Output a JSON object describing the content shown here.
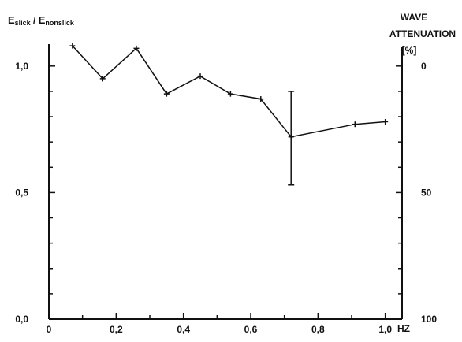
{
  "chart_data": {
    "type": "line",
    "ylabel_left": {
      "main_a": "E",
      "sub_a": "slick",
      "sep": " / ",
      "main_b": "E",
      "sub_b": "nonslick"
    },
    "ylabel_right": {
      "line1": "WAVE",
      "line2": "ATTENUATION",
      "line3": "[%]"
    },
    "xunit": "HZ",
    "xlim": [
      0,
      1.05
    ],
    "ylim_left": [
      0,
      1.18
    ],
    "ylim_right": [
      100,
      -18
    ],
    "x_ticks": [
      {
        "v": 0,
        "label": "0"
      },
      {
        "v": 0.2,
        "label": "0,2"
      },
      {
        "v": 0.4,
        "label": "0,4"
      },
      {
        "v": 0.6,
        "label": "0,6"
      },
      {
        "v": 0.8,
        "label": "0,8"
      },
      {
        "v": 1.0,
        "label": "1,0"
      }
    ],
    "x_minor_ticks": [
      0.1,
      0.3,
      0.5,
      0.7,
      0.9
    ],
    "y_left_ticks": [
      {
        "v": 0.0,
        "label": "0,0"
      },
      {
        "v": 0.5,
        "label": "0,5"
      },
      {
        "v": 1.0,
        "label": "1,0"
      }
    ],
    "y_left_minor_ticks": [
      0.1,
      0.2,
      0.3,
      0.4,
      0.6,
      0.7,
      0.8,
      0.9
    ],
    "y_right_ticks": [
      {
        "v": 0,
        "label": "0"
      },
      {
        "v": 50,
        "label": "50"
      },
      {
        "v": 100,
        "label": "100"
      }
    ],
    "y_right_minor_ticks": [
      10,
      20,
      30,
      40,
      60,
      70,
      80,
      90
    ],
    "series": [
      {
        "x": [
          0.07,
          0.16,
          0.26,
          0.35,
          0.45,
          0.54,
          0.63,
          0.72,
          0.91,
          1.0
        ],
        "y": [
          1.08,
          0.95,
          1.07,
          0.89,
          0.96,
          0.89,
          0.87,
          0.72,
          0.77,
          0.78
        ]
      }
    ],
    "error_bars": [
      {
        "x": 0.72,
        "low": 0.53,
        "high": 0.9
      }
    ],
    "grid": false
  }
}
